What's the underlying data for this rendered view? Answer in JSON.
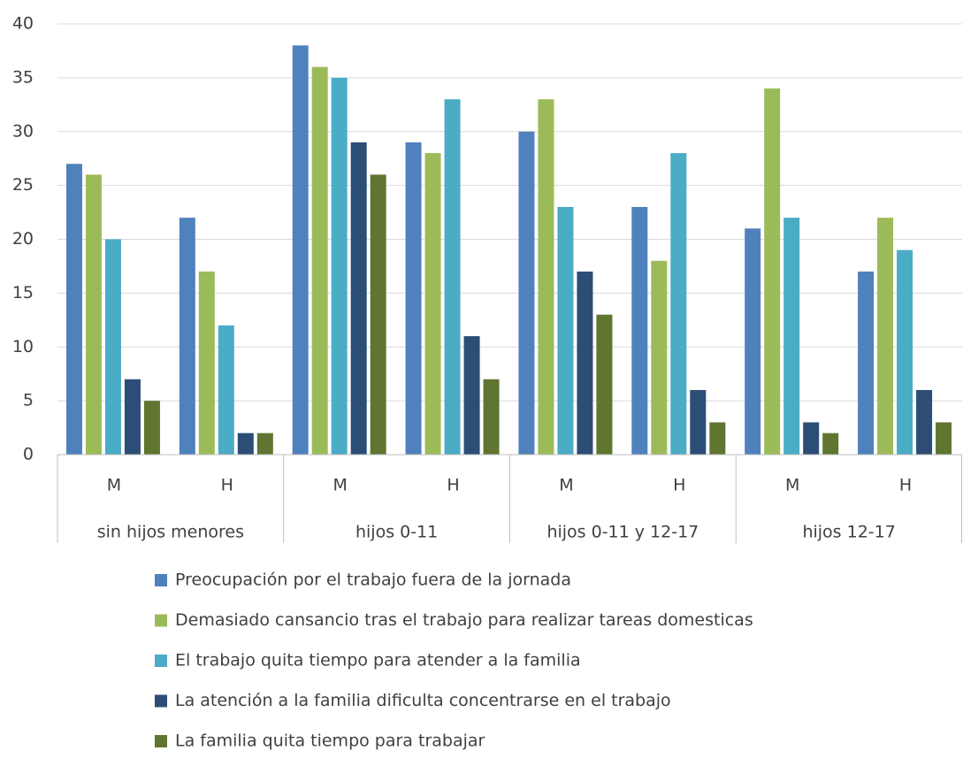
{
  "chart_data": {
    "type": "bar",
    "groups": [
      {
        "name": "sin hijos menores",
        "categories": [
          "M",
          "H"
        ]
      },
      {
        "name": "hijos 0-11",
        "categories": [
          "M",
          "H"
        ]
      },
      {
        "name": "hijos 0-11 y 12-17",
        "categories": [
          "M",
          "H"
        ]
      },
      {
        "name": "hijos 12-17",
        "categories": [
          "M",
          "H"
        ]
      }
    ],
    "series": [
      {
        "name": "Preocupación por el trabajo fuera de la jornada",
        "color": "#4f81bd",
        "values": [
          27,
          22,
          38,
          29,
          30,
          23,
          21,
          17
        ]
      },
      {
        "name": "Demasiado cansancio tras el trabajo para realizar tareas domesticas",
        "color": "#9bbb59",
        "values": [
          26,
          17,
          36,
          28,
          33,
          18,
          34,
          22
        ]
      },
      {
        "name": "El trabajo quita tiempo para atender a la familia",
        "color": "#4bacc6",
        "values": [
          20,
          12,
          35,
          33,
          23,
          28,
          22,
          19
        ]
      },
      {
        "name": "La atención a la familia dificulta concentrarse en el trabajo",
        "color": "#2c4d75",
        "values": [
          7,
          2,
          29,
          11,
          17,
          6,
          3,
          6
        ]
      },
      {
        "name": "La familia quita tiempo para trabajar",
        "color": "#5f7530",
        "values": [
          5,
          2,
          26,
          7,
          13,
          3,
          2,
          3
        ]
      }
    ],
    "ylim": [
      0,
      40
    ],
    "yticks": [
      0,
      5,
      10,
      15,
      20,
      25,
      30,
      35,
      40
    ],
    "grid": true
  }
}
